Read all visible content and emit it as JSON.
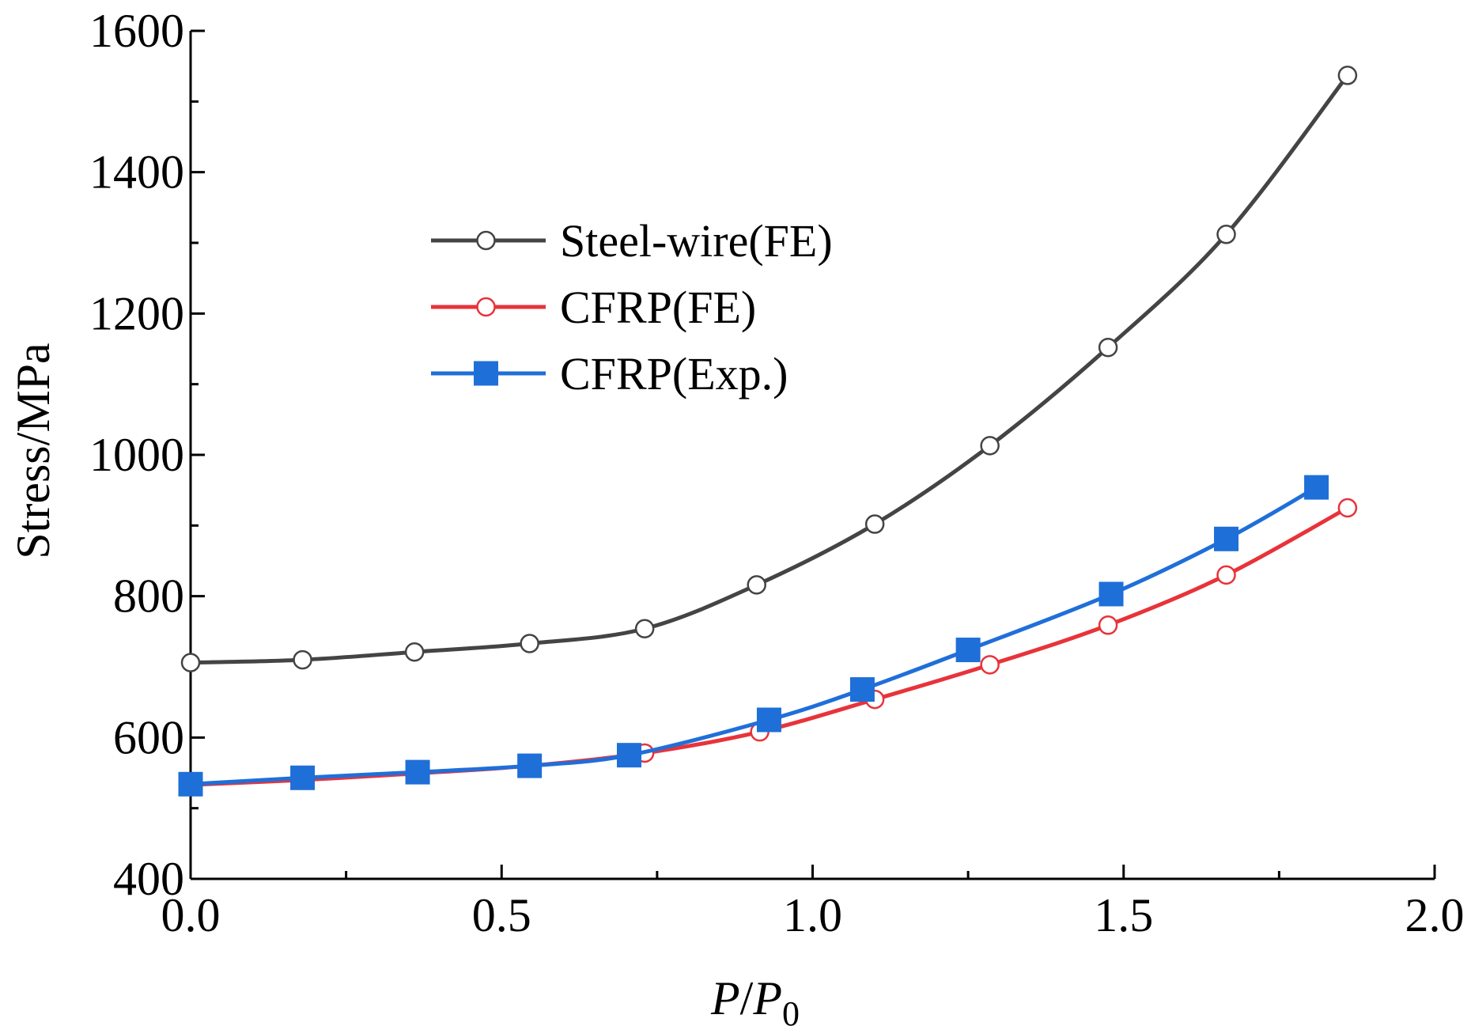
{
  "chart_data": {
    "type": "line",
    "title": "",
    "xlabel": {
      "main": "P/P",
      "subscript": "0",
      "numerator": "P",
      "slash": "/",
      "denominator": "P"
    },
    "ylabel": "Stress/MPa",
    "xlim": [
      0.0,
      2.0
    ],
    "ylim": [
      400,
      1600
    ],
    "x_ticks": [
      0.0,
      0.5,
      1.0,
      1.5,
      2.0
    ],
    "x_tick_labels": [
      "0.0",
      "0.5",
      "1.0",
      "1.5",
      "2.0"
    ],
    "y_ticks": [
      400,
      600,
      800,
      1000,
      1200,
      1400,
      1600
    ],
    "y_tick_labels": [
      "400",
      "600",
      "800",
      "1000",
      "1200",
      "1400",
      "1600"
    ],
    "grid": false,
    "legend_position": "upper-left-center",
    "series": [
      {
        "name": "Steel-wire(FE)",
        "color": "#444444",
        "marker": "open-circle",
        "x": [
          0.0,
          0.18,
          0.36,
          0.545,
          0.73,
          0.91,
          1.1,
          1.285,
          1.475,
          1.665,
          1.86
        ],
        "y": [
          706,
          710,
          721,
          733,
          754,
          816,
          902,
          1013,
          1152,
          1312,
          1537
        ]
      },
      {
        "name": "CFRP(FE)",
        "color": "#e8333a",
        "marker": "open-circle",
        "x": [
          0.0,
          0.18,
          0.36,
          0.545,
          0.73,
          0.915,
          1.1,
          1.285,
          1.475,
          1.665,
          1.86
        ],
        "y": [
          533,
          540,
          549,
          560,
          578,
          608,
          654,
          703,
          759,
          830,
          925
        ]
      },
      {
        "name": "CFRP(Exp.)",
        "color": "#1f6fd9",
        "marker": "filled-square",
        "x": [
          0.0,
          0.18,
          0.365,
          0.545,
          0.705,
          0.93,
          1.08,
          1.25,
          1.48,
          1.665,
          1.81
        ],
        "y": [
          534,
          543,
          551,
          560,
          575,
          625,
          668,
          724,
          803,
          881,
          954
        ]
      }
    ]
  }
}
